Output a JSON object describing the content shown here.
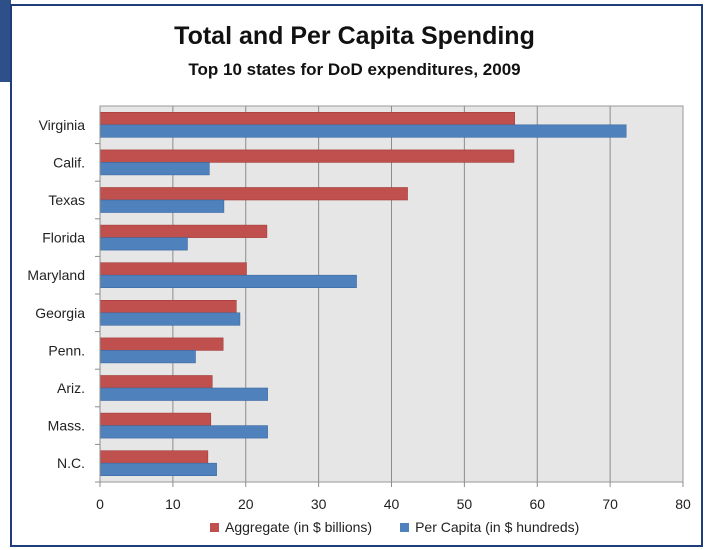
{
  "chart_data": {
    "type": "bar",
    "orientation": "horizontal",
    "title": "Total and Per Capita Spending",
    "subtitle": "Top 10 states for DoD expenditures, 2009",
    "categories": [
      "Virginia",
      "Calif.",
      "Texas",
      "Florida",
      "Maryland",
      "Georgia",
      "Penn.",
      "Ariz.",
      "Mass.",
      "N.C."
    ],
    "series": [
      {
        "name": "Aggregate (in $ billions)",
        "color": "#c0504d",
        "values": [
          56.9,
          56.8,
          42.2,
          22.9,
          20.1,
          18.7,
          16.9,
          15.4,
          15.2,
          14.8
        ]
      },
      {
        "name": "Per Capita (in $ hundreds)",
        "color": "#4f81bd",
        "values": [
          72.2,
          15.0,
          17.0,
          12.0,
          35.2,
          19.2,
          13.1,
          23.0,
          23.0,
          16.0
        ]
      }
    ],
    "xlim": [
      0,
      80
    ],
    "xticks": [
      0,
      10,
      20,
      30,
      40,
      50,
      60,
      70,
      80
    ],
    "grid": true,
    "legend_position": "bottom",
    "plot_background": "#e6e6e6"
  }
}
